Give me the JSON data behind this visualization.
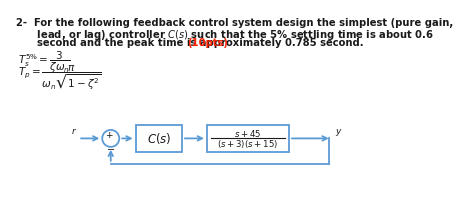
{
  "title_line1": "2-  For the following feedback control system design the simplest (pure gain,",
  "title_line2": "      lead, or lag) controller $C(s)$ such that the 5% settling time is about 0.6",
  "title_line3": "      second and the peak time is approximately 0.785 second. ",
  "title_pts": "(10pts)",
  "eq1": "$T_s^{5\\%} = \\dfrac{3}{\\zeta\\omega_n}$",
  "eq2": "$T_p = \\dfrac{\\pi}{\\omega_n\\sqrt{1-\\zeta^2}}$",
  "block_cs_label": "$C(s)$",
  "block_plant_line1": "$s + 45$",
  "block_plant_line2": "$(s + 3)(s + 15)$",
  "signal_r": "r",
  "signal_y": "y",
  "plus_sign": "+",
  "minus_sign": "−",
  "bg_color": "#ffffff",
  "text_color": "#1a1a1a",
  "pts_color": "#ff2200",
  "box_color": "#5b9bd5",
  "fs_main": 7.2,
  "fs_eq": 7.5,
  "fs_block": 8.5,
  "fs_plant": 6.2,
  "fs_signal": 6.5
}
